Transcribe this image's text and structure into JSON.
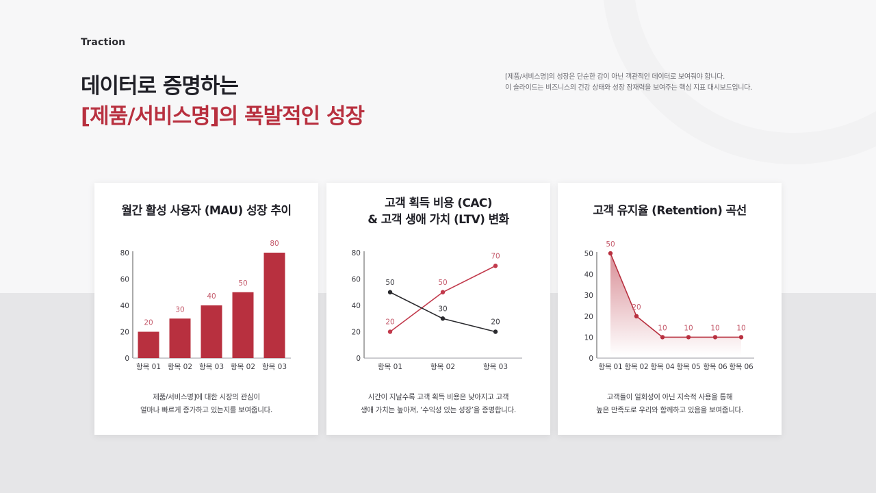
{
  "header": {
    "eyebrow": "Traction",
    "title_line1": "데이터로 증명하는",
    "title_line2": "[제품/서비스명]의 폭발적인 성장",
    "intro_line1": "[제품/서비스명]의 성장은 단순한 감이 아닌 객관적인 데이터로 보여줘야 합니다.",
    "intro_line2": "이 슬라이드는 비즈니스의 건강 상태와 성장 잠재력을 보여주는 핵심 지표 대시보드입니다."
  },
  "colors": {
    "accent": "#b8303f",
    "accent_label": "#c4596a",
    "dark_series": "#2a2a2e",
    "bg_top": "#f7f7f8",
    "bg_bottom": "#e6e6e8"
  },
  "cards": [
    {
      "title": "월간 활성 사용자 (MAU) 성장 추이",
      "desc_line1": "제품/서비스명]에 대한 시장의 관심이",
      "desc_line2": "얼마나 빠르게 증가하고 있는지를 보여줍니다."
    },
    {
      "title_line1": "고객 획득 비용 (CAC)",
      "title_line2": "& 고객 생애 가치 (LTV) 변화",
      "desc_line1": "시간이 지날수록 고객 획득 비용은 낮아지고 고객",
      "desc_line2": "생애 가치는 높아져, ‘수익성 있는 성장’을 증명합니다."
    },
    {
      "title": "고객 유지율 (Retention) 곡선",
      "desc_line1": "고객들이 일회성이 아닌 지속적 사용을 통해",
      "desc_line2": "높은 만족도로 우리와 함께하고 있음을 보여줍니다."
    }
  ],
  "chart_data": [
    {
      "type": "bar",
      "title": "월간 활성 사용자 (MAU) 성장 추이",
      "categories": [
        "항목 01",
        "항목 02",
        "항목 03",
        "항목 02",
        "항목 03"
      ],
      "values": [
        20,
        30,
        40,
        50,
        80
      ],
      "yticks": [
        "0",
        "20",
        "40",
        "60",
        "80"
      ],
      "ylim": [
        0,
        80
      ],
      "xlabel": "",
      "ylabel": "",
      "grid": false,
      "data_labels": [
        "20",
        "30",
        "40",
        "50",
        "80"
      ]
    },
    {
      "type": "line",
      "title": "고객 획득 비용 (CAC) & 고객 생애 가치 (LTV) 변화",
      "categories": [
        "항목 01",
        "항목 02",
        "항목 03"
      ],
      "series": [
        {
          "name": "LTV",
          "color": "#c23a4c",
          "values": [
            20,
            50,
            70
          ],
          "labels": [
            "20",
            "50",
            "70"
          ]
        },
        {
          "name": "CAC",
          "color": "#2a2a2e",
          "values": [
            50,
            30,
            20
          ],
          "labels": [
            "50",
            "30",
            "20"
          ]
        }
      ],
      "yticks": [
        "0",
        "20",
        "40",
        "60",
        "80"
      ],
      "ylim": [
        0,
        80
      ],
      "xlabel": "",
      "ylabel": "",
      "grid": false,
      "legend": "none"
    },
    {
      "type": "area",
      "title": "고객 유지율 (Retention) 곡선",
      "categories": [
        "항목 01",
        "항목 02",
        "항목 04",
        "항목 05",
        "항목 06",
        "항목 06"
      ],
      "values": [
        50,
        20,
        10,
        10,
        10,
        10
      ],
      "data_labels": [
        "50",
        "20",
        "10",
        "10",
        "10",
        "10"
      ],
      "yticks": [
        "0",
        "10",
        "20",
        "30",
        "40",
        "50"
      ],
      "ylim": [
        0,
        50
      ],
      "xlabel": "",
      "ylabel": "",
      "grid": false
    }
  ]
}
